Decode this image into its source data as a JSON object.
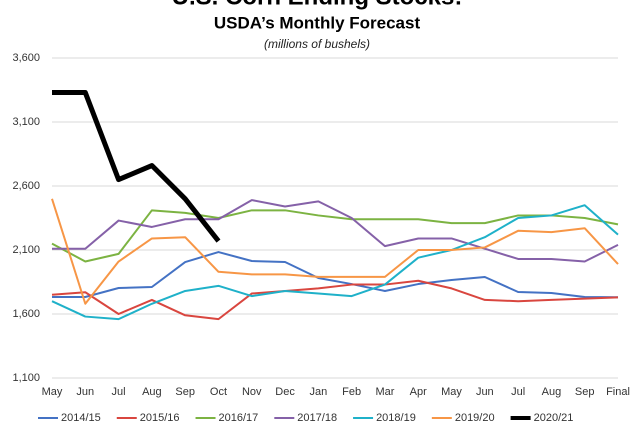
{
  "chart_data": {
    "type": "line",
    "title": "U.S. Corn Ending Stocks:",
    "subtitle": "USDA’s Monthly Forecast",
    "note": "(millions of bushels)",
    "categories": [
      "May",
      "Jun",
      "Jul",
      "Aug",
      "Sep",
      "Oct",
      "Nov",
      "Dec",
      "Jan",
      "Feb",
      "Mar",
      "Apr",
      "May",
      "Jun",
      "Jul",
      "Aug",
      "Sep",
      "Final"
    ],
    "ylim": [
      1100,
      3600
    ],
    "yticks": [
      {
        "value": 1100,
        "label": "1,100"
      },
      {
        "value": 1600,
        "label": "1,600"
      },
      {
        "value": 2100,
        "label": "2,100"
      },
      {
        "value": 2600,
        "label": "2,600"
      },
      {
        "value": 3100,
        "label": "3,100"
      },
      {
        "value": 3600,
        "label": "3,600"
      }
    ],
    "grid": true,
    "legend": "bottom",
    "series": [
      {
        "name": "2014/15",
        "color": "#4472c4",
        "width": 2,
        "values": [
          1733,
          1733,
          1803,
          1811,
          2006,
          2084,
          2014,
          2006,
          1881,
          1834,
          1780,
          1834,
          1866,
          1889,
          1772,
          1764,
          1733,
          1731
        ]
      },
      {
        "name": "2015/16",
        "color": "#d9463f",
        "width": 2,
        "values": [
          1750,
          1770,
          1600,
          1710,
          1590,
          1560,
          1760,
          1780,
          1800,
          1830,
          1830,
          1860,
          1800,
          1710,
          1700,
          1710,
          1720,
          1730
        ]
      },
      {
        "name": "2016/17",
        "color": "#7cb342",
        "width": 2,
        "values": [
          2150,
          2010,
          2070,
          2410,
          2390,
          2350,
          2410,
          2410,
          2370,
          2340,
          2340,
          2340,
          2310,
          2310,
          2370,
          2370,
          2350,
          2300
        ]
      },
      {
        "name": "2017/18",
        "color": "#8561a8",
        "width": 2,
        "values": [
          2110,
          2110,
          2330,
          2280,
          2340,
          2340,
          2490,
          2440,
          2480,
          2350,
          2130,
          2190,
          2190,
          2110,
          2030,
          2030,
          2010,
          2140
        ]
      },
      {
        "name": "2018/19",
        "color": "#1fb1c9",
        "width": 2,
        "values": [
          1700,
          1580,
          1560,
          1680,
          1780,
          1820,
          1740,
          1780,
          1760,
          1740,
          1830,
          2040,
          2100,
          2200,
          2350,
          2370,
          2450,
          2220
        ]
      },
      {
        "name": "2019/20",
        "color": "#f79646",
        "width": 2,
        "values": [
          2500,
          1680,
          2010,
          2190,
          2200,
          1930,
          1910,
          1910,
          1890,
          1890,
          1890,
          2100,
          2100,
          2120,
          2250,
          2240,
          2270,
          1990
        ]
      },
      {
        "name": "2020/21",
        "color": "#000000",
        "width": 5,
        "values": [
          3330,
          3330,
          2650,
          2760,
          2500,
          2170,
          null,
          null,
          null,
          null,
          null,
          null,
          null,
          null,
          null,
          null,
          null,
          null
        ]
      }
    ]
  }
}
